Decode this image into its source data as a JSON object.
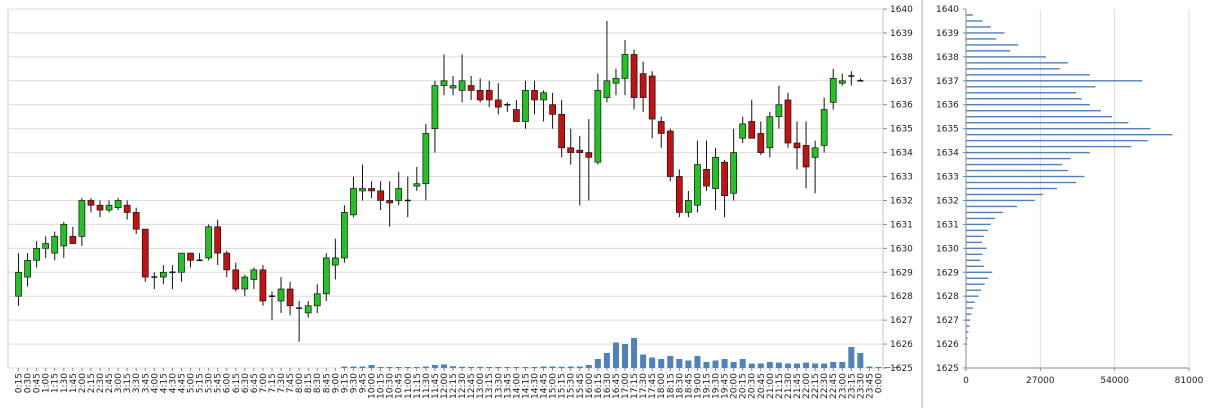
{
  "chart_data": [
    {
      "type": "candlestick",
      "ylim": [
        1625,
        1640
      ],
      "y_ticks": [
        1625,
        1626,
        1627,
        1628,
        1629,
        1630,
        1631,
        1632,
        1633,
        1634,
        1635,
        1636,
        1637,
        1638,
        1639,
        1640
      ],
      "x_tick_labels": [
        "0:15",
        "0:30",
        "0:45",
        "1:00",
        "1:15",
        "1:30",
        "1:45",
        "2:00",
        "2:15",
        "2:30",
        "2:45",
        "3:00",
        "3:15",
        "3:30",
        "3:45",
        "4:00",
        "4:15",
        "4:30",
        "4:45",
        "5:00",
        "5:15",
        "5:30",
        "5:45",
        "6:00",
        "6:15",
        "6:30",
        "6:45",
        "7:00",
        "7:15",
        "7:30",
        "7:45",
        "8:00",
        "8:15",
        "8:30",
        "8:45",
        "9:00",
        "9:15",
        "9:30",
        "9:45",
        "10:00",
        "10:15",
        "10:30",
        "10:45",
        "11:00",
        "11:15",
        "11:30",
        "11:45",
        "12:00",
        "12:15",
        "12:30",
        "12:45",
        "13:00",
        "13:15",
        "13:30",
        "13:45",
        "14:00",
        "14:15",
        "14:30",
        "14:45",
        "15:00",
        "15:15",
        "15:30",
        "15:45",
        "16:00",
        "16:15",
        "16:30",
        "16:45",
        "17:00",
        "17:15",
        "17:30",
        "17:45",
        "18:00",
        "18:15",
        "18:30",
        "18:45",
        "19:00",
        "19:15",
        "19:30",
        "19:45",
        "20:00",
        "20:15",
        "20:30",
        "20:45",
        "21:00",
        "21:15",
        "21:30",
        "21:45",
        "22:00",
        "22:15",
        "22:30",
        "22:45",
        "23:00",
        "23:15",
        "23:30",
        "23:45",
        "0:00"
      ],
      "bull_color": "#22c322",
      "bear_color": "#c41212",
      "volume_color": "#4f81bd",
      "grid": true,
      "candles": [
        {
          "o": 1628.0,
          "h": 1629.8,
          "l": 1627.6,
          "c": 1629.0
        },
        {
          "o": 1628.8,
          "h": 1629.8,
          "l": 1628.4,
          "c": 1629.5
        },
        {
          "o": 1629.5,
          "h": 1630.3,
          "l": 1629.2,
          "c": 1630.0
        },
        {
          "o": 1630.0,
          "h": 1630.5,
          "l": 1629.6,
          "c": 1630.2
        },
        {
          "o": 1629.8,
          "h": 1630.7,
          "l": 1629.5,
          "c": 1630.5
        },
        {
          "o": 1630.1,
          "h": 1631.1,
          "l": 1629.6,
          "c": 1631.0
        },
        {
          "o": 1630.5,
          "h": 1630.9,
          "l": 1630.2,
          "c": 1630.2
        },
        {
          "o": 1630.5,
          "h": 1632.1,
          "l": 1630.1,
          "c": 1632.0
        },
        {
          "o": 1632.0,
          "h": 1632.1,
          "l": 1631.5,
          "c": 1631.8
        },
        {
          "o": 1631.8,
          "h": 1632.0,
          "l": 1631.3,
          "c": 1631.6
        },
        {
          "o": 1631.6,
          "h": 1632.0,
          "l": 1631.5,
          "c": 1631.8
        },
        {
          "o": 1631.7,
          "h": 1632.1,
          "l": 1631.6,
          "c": 1632.0
        },
        {
          "o": 1631.8,
          "h": 1632.0,
          "l": 1631.2,
          "c": 1631.5
        },
        {
          "o": 1631.5,
          "h": 1631.7,
          "l": 1630.6,
          "c": 1630.8
        },
        {
          "o": 1630.8,
          "h": 1630.8,
          "l": 1628.6,
          "c": 1628.8
        },
        {
          "o": 1628.8,
          "h": 1629.0,
          "l": 1628.3,
          "c": 1628.8
        },
        {
          "o": 1628.8,
          "h": 1629.3,
          "l": 1628.5,
          "c": 1629.0
        },
        {
          "o": 1629.0,
          "h": 1629.3,
          "l": 1628.3,
          "c": 1629.0
        },
        {
          "o": 1629.0,
          "h": 1629.8,
          "l": 1628.6,
          "c": 1629.8
        },
        {
          "o": 1629.8,
          "h": 1629.8,
          "l": 1629.2,
          "c": 1629.5
        },
        {
          "o": 1629.5,
          "h": 1629.8,
          "l": 1629.5,
          "c": 1629.5
        },
        {
          "o": 1629.6,
          "h": 1631.0,
          "l": 1629.5,
          "c": 1630.9
        },
        {
          "o": 1630.9,
          "h": 1631.2,
          "l": 1629.3,
          "c": 1629.8
        },
        {
          "o": 1629.8,
          "h": 1629.9,
          "l": 1628.8,
          "c": 1629.1
        },
        {
          "o": 1629.1,
          "h": 1629.4,
          "l": 1628.2,
          "c": 1628.3
        },
        {
          "o": 1628.3,
          "h": 1628.9,
          "l": 1628.0,
          "c": 1628.8
        },
        {
          "o": 1628.7,
          "h": 1629.2,
          "l": 1628.3,
          "c": 1629.1
        },
        {
          "o": 1629.1,
          "h": 1629.3,
          "l": 1627.6,
          "c": 1627.8
        },
        {
          "o": 1628.0,
          "h": 1628.2,
          "l": 1627.0,
          "c": 1628.0
        },
        {
          "o": 1627.8,
          "h": 1628.8,
          "l": 1627.3,
          "c": 1628.3
        },
        {
          "o": 1628.3,
          "h": 1628.6,
          "l": 1627.2,
          "c": 1627.6
        },
        {
          "o": 1627.5,
          "h": 1627.8,
          "l": 1626.1,
          "c": 1627.5
        },
        {
          "o": 1627.3,
          "h": 1627.8,
          "l": 1627.1,
          "c": 1627.6
        },
        {
          "o": 1627.6,
          "h": 1628.5,
          "l": 1627.3,
          "c": 1628.1
        },
        {
          "o": 1628.1,
          "h": 1629.8,
          "l": 1627.8,
          "c": 1629.6
        },
        {
          "o": 1629.3,
          "h": 1630.4,
          "l": 1628.7,
          "c": 1629.6
        },
        {
          "o": 1629.6,
          "h": 1631.8,
          "l": 1629.4,
          "c": 1631.5
        },
        {
          "o": 1631.4,
          "h": 1633.0,
          "l": 1631.3,
          "c": 1632.5
        },
        {
          "o": 1632.4,
          "h": 1633.5,
          "l": 1632.0,
          "c": 1632.5
        },
        {
          "o": 1632.5,
          "h": 1632.8,
          "l": 1632.1,
          "c": 1632.4
        },
        {
          "o": 1632.4,
          "h": 1632.8,
          "l": 1631.6,
          "c": 1632.0
        },
        {
          "o": 1632.0,
          "h": 1632.8,
          "l": 1630.9,
          "c": 1631.9
        },
        {
          "o": 1632.0,
          "h": 1633.2,
          "l": 1631.8,
          "c": 1632.5
        },
        {
          "o": 1632.0,
          "h": 1633.0,
          "l": 1631.3,
          "c": 1632.0
        },
        {
          "o": 1632.6,
          "h": 1633.4,
          "l": 1632.4,
          "c": 1632.7
        },
        {
          "o": 1632.7,
          "h": 1635.2,
          "l": 1632.0,
          "c": 1634.8
        },
        {
          "o": 1635.0,
          "h": 1637.0,
          "l": 1634.0,
          "c": 1636.8
        },
        {
          "o": 1636.8,
          "h": 1638.1,
          "l": 1636.4,
          "c": 1637.0
        },
        {
          "o": 1636.7,
          "h": 1637.2,
          "l": 1636.4,
          "c": 1636.8
        },
        {
          "o": 1636.6,
          "h": 1638.1,
          "l": 1636.1,
          "c": 1637.0
        },
        {
          "o": 1636.8,
          "h": 1637.2,
          "l": 1636.2,
          "c": 1636.6
        },
        {
          "o": 1636.6,
          "h": 1637.1,
          "l": 1636.1,
          "c": 1636.2
        },
        {
          "o": 1636.6,
          "h": 1637.0,
          "l": 1635.9,
          "c": 1636.2
        },
        {
          "o": 1636.2,
          "h": 1636.9,
          "l": 1635.6,
          "c": 1635.9
        },
        {
          "o": 1636.0,
          "h": 1636.1,
          "l": 1635.7,
          "c": 1636.0
        },
        {
          "o": 1635.8,
          "h": 1636.2,
          "l": 1635.3,
          "c": 1635.3
        },
        {
          "o": 1635.3,
          "h": 1637.0,
          "l": 1635.0,
          "c": 1636.6
        },
        {
          "o": 1636.6,
          "h": 1637.0,
          "l": 1635.6,
          "c": 1636.2
        },
        {
          "o": 1636.2,
          "h": 1636.6,
          "l": 1635.3,
          "c": 1636.5
        },
        {
          "o": 1636.0,
          "h": 1636.5,
          "l": 1635.0,
          "c": 1635.6
        },
        {
          "o": 1635.6,
          "h": 1636.2,
          "l": 1633.8,
          "c": 1634.2
        },
        {
          "o": 1634.2,
          "h": 1635.0,
          "l": 1633.5,
          "c": 1634.0
        },
        {
          "o": 1634.1,
          "h": 1634.7,
          "l": 1631.8,
          "c": 1634.0
        },
        {
          "o": 1634.0,
          "h": 1635.4,
          "l": 1632.0,
          "c": 1633.8
        },
        {
          "o": 1633.6,
          "h": 1637.3,
          "l": 1633.5,
          "c": 1636.6
        },
        {
          "o": 1636.3,
          "h": 1639.5,
          "l": 1636.1,
          "c": 1637.0
        },
        {
          "o": 1636.9,
          "h": 1637.5,
          "l": 1636.4,
          "c": 1637.1
        },
        {
          "o": 1637.1,
          "h": 1638.7,
          "l": 1636.4,
          "c": 1638.1
        },
        {
          "o": 1638.1,
          "h": 1638.3,
          "l": 1635.8,
          "c": 1636.3
        },
        {
          "o": 1637.3,
          "h": 1637.8,
          "l": 1635.7,
          "c": 1636.3
        },
        {
          "o": 1637.2,
          "h": 1637.4,
          "l": 1634.6,
          "c": 1635.4
        },
        {
          "o": 1635.3,
          "h": 1635.5,
          "l": 1634.2,
          "c": 1634.8
        },
        {
          "o": 1634.9,
          "h": 1635.0,
          "l": 1632.8,
          "c": 1633.0
        },
        {
          "o": 1633.0,
          "h": 1633.3,
          "l": 1631.3,
          "c": 1631.5
        },
        {
          "o": 1631.5,
          "h": 1632.4,
          "l": 1631.3,
          "c": 1632.0
        },
        {
          "o": 1631.8,
          "h": 1634.5,
          "l": 1631.5,
          "c": 1633.5
        },
        {
          "o": 1633.3,
          "h": 1634.5,
          "l": 1632.4,
          "c": 1632.6
        },
        {
          "o": 1632.5,
          "h": 1634.2,
          "l": 1631.6,
          "c": 1633.8
        },
        {
          "o": 1633.6,
          "h": 1633.7,
          "l": 1631.3,
          "c": 1632.2
        },
        {
          "o": 1632.3,
          "h": 1635.0,
          "l": 1632.0,
          "c": 1634.0
        },
        {
          "o": 1634.6,
          "h": 1635.5,
          "l": 1634.4,
          "c": 1635.2
        },
        {
          "o": 1635.3,
          "h": 1636.2,
          "l": 1634.7,
          "c": 1634.6
        },
        {
          "o": 1634.8,
          "h": 1635.3,
          "l": 1633.9,
          "c": 1634.0
        },
        {
          "o": 1634.2,
          "h": 1635.7,
          "l": 1633.8,
          "c": 1635.5
        },
        {
          "o": 1635.5,
          "h": 1636.8,
          "l": 1635.0,
          "c": 1636.0
        },
        {
          "o": 1636.2,
          "h": 1636.5,
          "l": 1634.2,
          "c": 1634.4
        },
        {
          "o": 1634.4,
          "h": 1635.3,
          "l": 1633.3,
          "c": 1634.2
        },
        {
          "o": 1634.3,
          "h": 1635.3,
          "l": 1632.5,
          "c": 1633.4
        },
        {
          "o": 1633.8,
          "h": 1634.5,
          "l": 1632.3,
          "c": 1634.2
        },
        {
          "o": 1634.3,
          "h": 1636.3,
          "l": 1634.0,
          "c": 1635.8
        },
        {
          "o": 1636.1,
          "h": 1637.5,
          "l": 1635.8,
          "c": 1637.1
        },
        {
          "o": 1636.9,
          "h": 1637.3,
          "l": 1636.8,
          "c": 1637.0
        },
        {
          "o": 1637.2,
          "h": 1637.4,
          "l": 1636.8,
          "c": 1637.2
        },
        {
          "o": 1637.0,
          "h": 1637.1,
          "l": 1637.0,
          "c": 1637.0
        }
      ],
      "volumes": [
        0,
        0,
        0,
        0,
        0,
        0,
        0,
        0,
        0,
        0,
        0,
        0,
        0,
        0,
        0,
        0,
        0,
        0,
        0,
        0,
        0,
        0,
        0,
        0,
        0,
        0,
        0,
        0,
        0,
        0,
        0,
        0,
        0,
        0,
        0,
        0,
        0.05,
        0.05,
        0.05,
        0.1,
        0.03,
        0.02,
        0.02,
        0.02,
        0.02,
        0.05,
        0.1,
        0.12,
        0.06,
        0.04,
        0.03,
        0.04,
        0.02,
        0.02,
        0.03,
        0.02,
        0.03,
        0.02,
        0.05,
        0.05,
        0.04,
        0.05,
        0.05,
        0.1,
        0.3,
        0.5,
        0.85,
        0.8,
        1.0,
        0.45,
        0.35,
        0.3,
        0.4,
        0.3,
        0.25,
        0.4,
        0.2,
        0.25,
        0.3,
        0.2,
        0.3,
        0.15,
        0.15,
        0.2,
        0.18,
        0.15,
        0.15,
        0.18,
        0.15,
        0.15,
        0.2,
        0.2,
        0.7,
        0.5,
        0.05,
        0.02,
        0.01,
        0.01
      ],
      "volume_max_px": 30
    },
    {
      "type": "bar",
      "orientation": "horizontal",
      "title": "",
      "xlim": [
        0,
        81000
      ],
      "x_ticks": [
        0,
        27000,
        54000,
        81000
      ],
      "ylim": [
        1625,
        1640
      ],
      "y_ticks": [
        1625,
        1626,
        1627,
        1628,
        1629,
        1630,
        1631,
        1632,
        1633,
        1634,
        1635,
        1636,
        1637,
        1638,
        1639,
        1640
      ],
      "bar_color": "#4f81bd",
      "grid": true,
      "levels": [
        1626.0,
        1626.25,
        1626.5,
        1626.75,
        1627.0,
        1627.25,
        1627.5,
        1627.75,
        1628.0,
        1628.25,
        1628.5,
        1628.75,
        1629.0,
        1629.25,
        1629.5,
        1629.75,
        1630.0,
        1630.25,
        1630.5,
        1630.75,
        1631.0,
        1631.25,
        1631.5,
        1631.75,
        1632.0,
        1632.25,
        1632.5,
        1632.75,
        1633.0,
        1633.25,
        1633.5,
        1633.75,
        1634.0,
        1634.25,
        1634.5,
        1634.75,
        1635.0,
        1635.25,
        1635.5,
        1635.75,
        1636.0,
        1636.25,
        1636.5,
        1636.75,
        1637.0,
        1637.25,
        1637.5,
        1637.75,
        1638.0,
        1638.25,
        1638.5,
        1638.75,
        1639.0,
        1639.25,
        1639.5,
        1639.75
      ],
      "values": [
        400,
        600,
        900,
        1300,
        1500,
        2000,
        2500,
        3200,
        4500,
        5500,
        6800,
        8000,
        9500,
        6500,
        5200,
        6000,
        7500,
        5800,
        6500,
        8000,
        9000,
        10500,
        13500,
        18500,
        25000,
        28000,
        33000,
        40000,
        43000,
        37000,
        35000,
        38000,
        45000,
        60000,
        66000,
        75000,
        67000,
        59000,
        53000,
        49000,
        45000,
        42000,
        40000,
        47000,
        64000,
        45000,
        34000,
        37000,
        29000,
        16000,
        19000,
        11000,
        14000,
        9000,
        6000,
        2500
      ]
    }
  ]
}
